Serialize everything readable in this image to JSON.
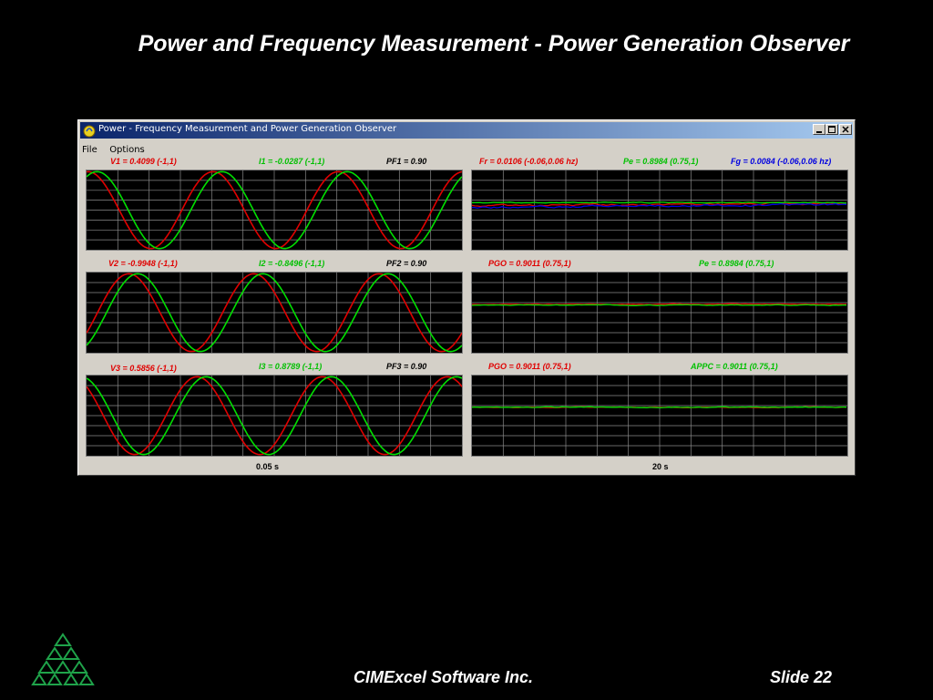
{
  "slide": {
    "title": "Power and Frequency Measurement - Power Generation Observer",
    "footer_company": "CIMExcel Software Inc.",
    "footer_slide": "Slide 22"
  },
  "window": {
    "title": "Power - Frequency Measurement and Power Generation Observer",
    "menu": [
      "File",
      "Options"
    ],
    "controls": [
      "minimize",
      "maximize",
      "close"
    ]
  },
  "colors": {
    "red": "#e00000",
    "green": "#00e000",
    "blue": "#0000e0",
    "black": "#000000",
    "grid": "#8a8a8a",
    "logo": "#1fa34a"
  },
  "readouts": {
    "row1": {
      "v": "V1 = 0.4099  (-1,1)",
      "i": "I1 = -0.0287  (-1,1)",
      "pf": "PF1 = 0.90",
      "r1": "Fr = 0.0106 (-0.06,0.06 hz)",
      "r2": "Pe = 0.8984 (0.75,1)",
      "r3": "Fg = 0.0084 (-0.06,0.06 hz)"
    },
    "row2": {
      "v": "V2 = -0.9948  (-1,1)",
      "i": "I2 = -0.8496  (-1,1)",
      "pf": "PF2 = 0.90",
      "r1": "PGO = 0.9011 (0.75,1)",
      "r2": "Pe = 0.8984 (0.75,1)"
    },
    "row3": {
      "v": "V3 = 0.5856  (-1,1)",
      "i": "I3 = 0.8789  (-1,1)",
      "pf": "PF3 = 0.90",
      "r1": "PGO = 0.9011 (0.75,1)",
      "r2": "APPC = 0.9011 (0.75,1)"
    }
  },
  "time_labels": {
    "left": "0.05 s",
    "right": "20 s"
  },
  "chart_data": [
    {
      "type": "line",
      "panel": "phase-1-waveforms",
      "ylim": [
        -1,
        1
      ],
      "cycles": 3,
      "series": [
        {
          "name": "V1",
          "color": "#e00000",
          "current_value": 0.4099
        },
        {
          "name": "I1",
          "color": "#00e000",
          "current_value": -0.0287
        }
      ],
      "power_factor": 0.9
    },
    {
      "type": "line",
      "panel": "frequency-power-trend",
      "series": [
        {
          "name": "Fr",
          "color": "#e00000",
          "current_value": 0.0106,
          "ylim": [
            -0.06,
            0.06
          ]
        },
        {
          "name": "Pe",
          "color": "#00e000",
          "current_value": 0.8984,
          "ylim": [
            0.75,
            1
          ]
        },
        {
          "name": "Fg",
          "color": "#0000e0",
          "current_value": 0.0084,
          "ylim": [
            -0.06,
            0.06
          ]
        }
      ]
    },
    {
      "type": "line",
      "panel": "phase-2-waveforms",
      "ylim": [
        -1,
        1
      ],
      "cycles": 3,
      "series": [
        {
          "name": "V2",
          "color": "#e00000",
          "current_value": -0.9948
        },
        {
          "name": "I2",
          "color": "#00e000",
          "current_value": -0.8496
        }
      ],
      "power_factor": 0.9
    },
    {
      "type": "line",
      "panel": "pgo-pe-trend",
      "series": [
        {
          "name": "PGO",
          "color": "#e00000",
          "current_value": 0.9011,
          "ylim": [
            0.75,
            1
          ]
        },
        {
          "name": "Pe",
          "color": "#00e000",
          "current_value": 0.8984,
          "ylim": [
            0.75,
            1
          ]
        }
      ]
    },
    {
      "type": "line",
      "panel": "phase-3-waveforms",
      "ylim": [
        -1,
        1
      ],
      "cycles": 3,
      "series": [
        {
          "name": "V3",
          "color": "#e00000",
          "current_value": 0.5856
        },
        {
          "name": "I3",
          "color": "#00e000",
          "current_value": 0.8789
        }
      ],
      "power_factor": 0.9
    },
    {
      "type": "line",
      "panel": "pgo-appc-trend",
      "series": [
        {
          "name": "PGO",
          "color": "#e00000",
          "current_value": 0.9011,
          "ylim": [
            0.75,
            1
          ]
        },
        {
          "name": "APPC",
          "color": "#00e000",
          "current_value": 0.9011,
          "ylim": [
            0.75,
            1
          ]
        }
      ]
    }
  ]
}
